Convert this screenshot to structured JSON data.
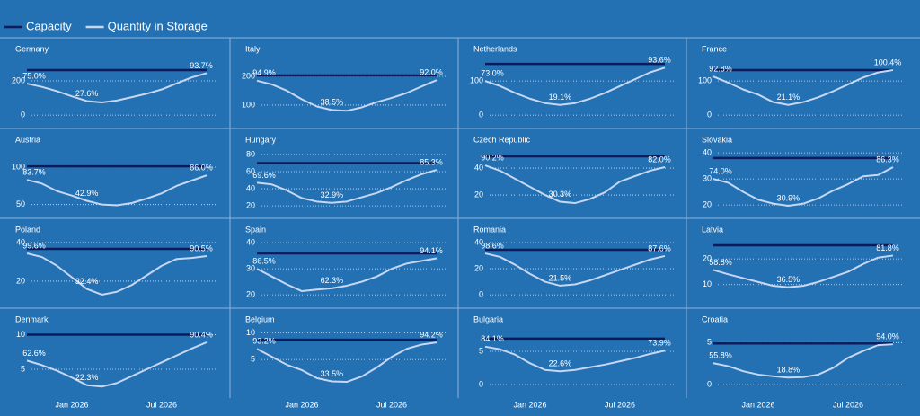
{
  "legend": [
    {
      "name": "Capacity",
      "color": "#0d1a5c"
    },
    {
      "name": "Quantity in Storage",
      "color": "#c6d7f3"
    }
  ],
  "x": [
    "2025-10",
    "2025-11",
    "2025-12",
    "2026-01",
    "2026-02",
    "2026-03",
    "2026-04",
    "2026-05",
    "2026-06",
    "2026-07",
    "2026-08",
    "2026-09",
    "2026-10"
  ],
  "xticks": [
    {
      "value": "2026-01",
      "label": "Jan 2026"
    },
    {
      "value": "2026-07",
      "label": "Jul 2026"
    }
  ],
  "chart_data": [
    {
      "type": "line",
      "title": "Germany",
      "ylim": [
        -10,
        305
      ],
      "yticks": [
        0,
        200
      ],
      "capacity": 263,
      "storage": [
        184,
        165,
        140,
        110,
        82,
        74,
        85,
        105,
        125,
        150,
        185,
        220,
        245
      ],
      "fill_labels": [
        {
          "x": "2025-10",
          "label": "75.0%"
        },
        {
          "x": "2026-02",
          "label": "27.6%"
        },
        {
          "x": "2026-10",
          "label": "93.7%"
        }
      ]
    },
    {
      "type": "line",
      "title": "Italy",
      "ylim": [
        59,
        247
      ],
      "yticks": [
        100,
        200
      ],
      "capacity": 203,
      "storage": [
        185,
        172,
        150,
        120,
        95,
        83,
        80,
        92,
        110,
        125,
        142,
        165,
        187
      ],
      "fill_labels": [
        {
          "x": "2025-10",
          "label": "94.9%"
        },
        {
          "x": "2026-03",
          "label": "38.5%"
        },
        {
          "x": "2026-10",
          "label": "92.0%"
        }
      ]
    },
    {
      "type": "line",
      "title": "Netherlands",
      "ylim": [
        -5,
        153
      ],
      "yticks": [
        0,
        100
      ],
      "capacity": 150,
      "storage": [
        100,
        85,
        65,
        48,
        35,
        30,
        35,
        48,
        65,
        85,
        105,
        125,
        139
      ],
      "fill_labels": [
        {
          "x": "2025-10",
          "label": "73.0%"
        },
        {
          "x": "2026-03",
          "label": "19.1%"
        },
        {
          "x": "2026-10",
          "label": "93.6%"
        }
      ]
    },
    {
      "type": "line",
      "title": "France",
      "ylim": [
        -5,
        153
      ],
      "yticks": [
        0,
        100
      ],
      "capacity": 132,
      "storage": [
        113,
        95,
        75,
        60,
        38,
        30,
        38,
        52,
        70,
        90,
        110,
        125,
        132
      ],
      "fill_labels": [
        {
          "x": "2025-10",
          "label": "92.8%"
        },
        {
          "x": "2026-03",
          "label": "21.1%"
        },
        {
          "x": "2026-10",
          "label": "100.4%"
        }
      ]
    },
    {
      "type": "line",
      "title": "Austria",
      "ylim": [
        46,
        118
      ],
      "yticks": [
        50,
        100
      ],
      "capacity": 101,
      "storage": [
        83,
        78,
        68,
        62,
        55,
        50,
        49,
        52,
        58,
        65,
        75,
        82,
        89
      ],
      "fill_labels": [
        {
          "x": "2025-10",
          "label": "83.7%"
        },
        {
          "x": "2026-02",
          "label": "42.9%"
        },
        {
          "x": "2026-10",
          "label": "86.0%"
        }
      ]
    },
    {
      "type": "line",
      "title": "Hungary",
      "ylim": [
        18,
        81
      ],
      "yticks": [
        20,
        40,
        60,
        80
      ],
      "capacity": 70,
      "storage": [
        47,
        45,
        38,
        29,
        25,
        23.5,
        25,
        30,
        35,
        42,
        50,
        57,
        62
      ],
      "fill_labels": [
        {
          "x": "2025-10",
          "label": "69.6%"
        },
        {
          "x": "2026-03",
          "label": "32.9%"
        },
        {
          "x": "2026-10",
          "label": "85.3%"
        }
      ]
    },
    {
      "type": "line",
      "title": "Czech Republic",
      "ylim": [
        10.7,
        50.7
      ],
      "yticks": [
        20,
        40
      ],
      "capacity": 48.7,
      "storage": [
        42,
        38,
        32,
        26,
        20,
        15,
        14,
        17,
        22,
        30,
        34,
        38,
        40.7
      ],
      "fill_labels": [
        {
          "x": "2025-10",
          "label": "90.2%"
        },
        {
          "x": "2026-03",
          "label": "30.3%"
        },
        {
          "x": "2026-10",
          "label": "82.0%"
        }
      ]
    },
    {
      "type": "line",
      "title": "Slovakia",
      "ylim": [
        19,
        39.7
      ],
      "yticks": [
        20,
        30,
        40
      ],
      "capacity": 38,
      "storage": [
        30,
        28.5,
        25,
        22,
        20.5,
        19.7,
        20.5,
        22.5,
        25.5,
        28,
        31,
        31.5,
        34.5
      ],
      "fill_labels": [
        {
          "x": "2025-10",
          "label": "74.0%"
        },
        {
          "x": "2026-03",
          "label": "30.9%"
        },
        {
          "x": "2026-10",
          "label": "86.3%"
        }
      ]
    },
    {
      "type": "line",
      "title": "Poland",
      "ylim": [
        11.6,
        39.5
      ],
      "yticks": [
        20,
        40
      ],
      "capacity": 36.7,
      "storage": [
        34.4,
        32.5,
        28,
        22,
        16,
        13,
        14.5,
        18,
        23,
        28,
        31.5,
        32,
        33
      ],
      "fill_labels": [
        {
          "x": "2025-10",
          "label": "99.6%"
        },
        {
          "x": "2026-02",
          "label": "32.4%"
        },
        {
          "x": "2026-10",
          "label": "90.5%"
        }
      ]
    },
    {
      "type": "line",
      "title": "Spain",
      "ylim": [
        19,
        39.7
      ],
      "yticks": [
        20,
        30,
        40
      ],
      "capacity": 35.9,
      "storage": [
        30,
        27,
        24,
        21.4,
        22,
        22.5,
        23.5,
        25,
        27,
        30,
        32,
        33,
        34
      ],
      "fill_labels": [
        {
          "x": "2025-10",
          "label": "86.5%"
        },
        {
          "x": "2026-03",
          "label": "62.3%"
        },
        {
          "x": "2026-10",
          "label": "94.1%"
        }
      ]
    },
    {
      "type": "line",
      "title": "Romania",
      "ylim": [
        -2,
        39.3
      ],
      "yticks": [
        0,
        20,
        40
      ],
      "capacity": 34.5,
      "storage": [
        31.7,
        29,
        23,
        16,
        10,
        7,
        8,
        11,
        15,
        19,
        23,
        27,
        29.7
      ],
      "fill_labels": [
        {
          "x": "2025-10",
          "label": "98.6%"
        },
        {
          "x": "2026-03",
          "label": "21.5%"
        },
        {
          "x": "2026-10",
          "label": "87.6%"
        }
      ]
    },
    {
      "type": "line",
      "title": "Latvia",
      "ylim": [
        5,
        26
      ],
      "yticks": [
        10,
        20
      ],
      "capacity": 25.3,
      "storage": [
        15.7,
        14,
        12.5,
        11,
        9.5,
        9,
        9.5,
        11,
        13,
        15,
        18,
        20.5,
        21.3
      ],
      "fill_labels": [
        {
          "x": "2025-10",
          "label": "58.8%"
        },
        {
          "x": "2026-03",
          "label": "36.5%"
        },
        {
          "x": "2026-10",
          "label": "81.8%"
        }
      ]
    },
    {
      "type": "line",
      "title": "Denmark",
      "ylim": [
        2.4,
        10.2
      ],
      "yticks": [
        5,
        10
      ],
      "capacity": 10,
      "storage": [
        6.25,
        5.6,
        4.8,
        3.8,
        2.7,
        2.5,
        3,
        4,
        5,
        6,
        7,
        8,
        8.9
      ],
      "fill_labels": [
        {
          "x": "2025-10",
          "label": "62.6%"
        },
        {
          "x": "2026-02",
          "label": "22.3%"
        },
        {
          "x": "2026-10",
          "label": "90.4%"
        }
      ]
    },
    {
      "type": "line",
      "title": "Belgium",
      "ylim": [
        -0.2,
        9.9
      ],
      "yticks": [
        5,
        10
      ],
      "capacity": 8.7,
      "storage": [
        7,
        5.5,
        4,
        3,
        1.5,
        0.9,
        0.8,
        1.8,
        3.5,
        5.5,
        7,
        7.8,
        8.2
      ],
      "fill_labels": [
        {
          "x": "2025-10",
          "label": "93.2%"
        },
        {
          "x": "2026-03",
          "label": "33.5%"
        },
        {
          "x": "2026-10",
          "label": "94.2%"
        }
      ]
    },
    {
      "type": "line",
      "title": "Bulgaria",
      "ylim": [
        -0.4,
        7.7
      ],
      "yticks": [
        0,
        5
      ],
      "capacity": 6.9,
      "storage": [
        5.7,
        5.3,
        4.5,
        3.2,
        2.2,
        2,
        2.2,
        2.6,
        3,
        3.5,
        4,
        4.6,
        5.1
      ],
      "fill_labels": [
        {
          "x": "2025-10",
          "label": "84.1%"
        },
        {
          "x": "2026-03",
          "label": "22.6%"
        },
        {
          "x": "2026-10",
          "label": "73.9%"
        }
      ]
    },
    {
      "type": "line",
      "title": "Croatia",
      "ylim": [
        -0.3,
        6.1
      ],
      "yticks": [
        0,
        5
      ],
      "capacity": 4.9,
      "storage": [
        2.55,
        2.2,
        1.6,
        1.2,
        1,
        0.85,
        0.9,
        1.2,
        2,
        3.2,
        4,
        4.7,
        4.8
      ],
      "fill_labels": [
        {
          "x": "2025-10",
          "label": "55.8%"
        },
        {
          "x": "2026-03",
          "label": "18.8%"
        },
        {
          "x": "2026-10",
          "label": "94.0%"
        }
      ]
    }
  ]
}
